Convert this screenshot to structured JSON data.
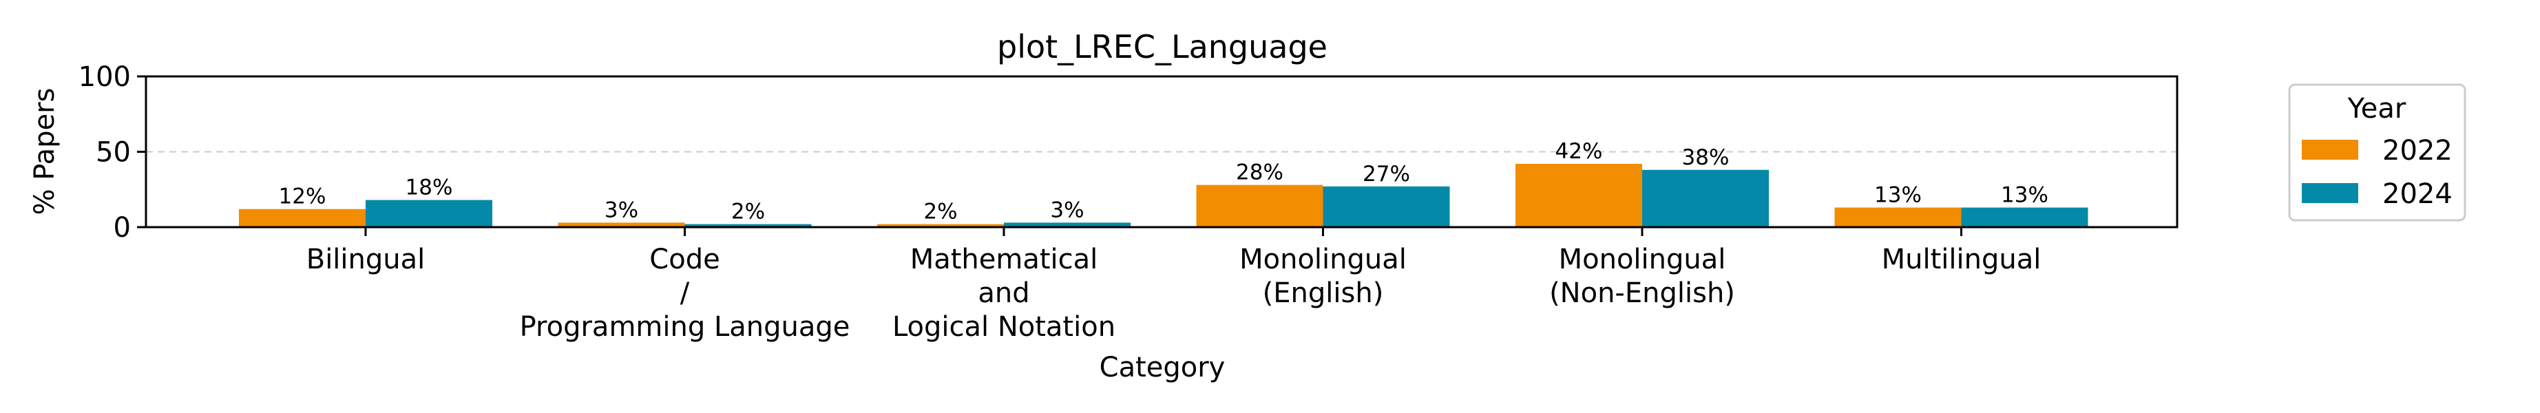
{
  "chart_data": {
    "type": "bar",
    "title": "plot_LREC_Language",
    "xlabel": "Category",
    "ylabel": "% Papers",
    "ylim": [
      0,
      100
    ],
    "yticks": [
      0,
      50,
      100
    ],
    "grid": "horizontal dashed at 50",
    "categories": [
      [
        "Bilingual"
      ],
      [
        "Code",
        "/",
        "Programming Language"
      ],
      [
        "Mathematical",
        "and",
        "Logical Notation"
      ],
      [
        "Monolingual",
        "(English)"
      ],
      [
        "Monolingual",
        "(Non-English)"
      ],
      [
        "Multilingual"
      ]
    ],
    "series": [
      {
        "name": "2022",
        "color": "#F28C00",
        "values": [
          12,
          3,
          2,
          28,
          42,
          13
        ],
        "labels": [
          "12%",
          "3%",
          "2%",
          "28%",
          "42%",
          "13%"
        ]
      },
      {
        "name": "2024",
        "color": "#0589A8",
        "values": [
          18,
          2,
          3,
          27,
          38,
          13
        ],
        "labels": [
          "18%",
          "2%",
          "3%",
          "27%",
          "38%",
          "13%"
        ]
      }
    ],
    "legend": {
      "title": "Year",
      "placement": "right-outside"
    }
  }
}
